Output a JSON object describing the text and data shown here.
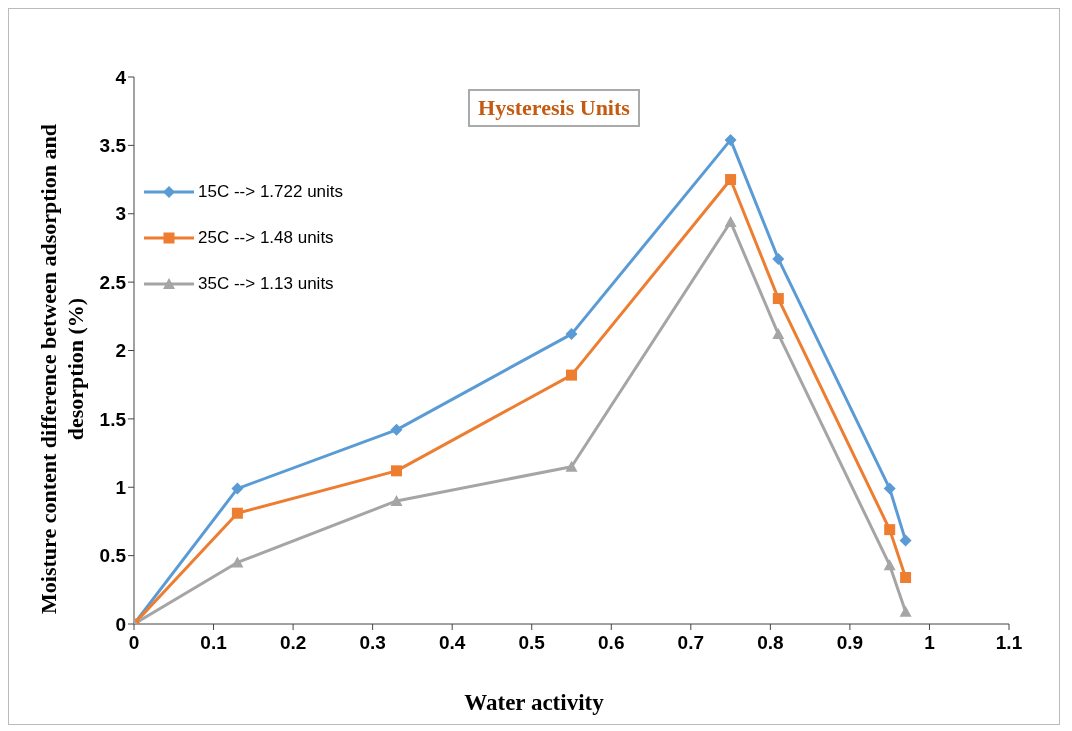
{
  "chart_data": {
    "type": "line",
    "title": "Hysteresis Units",
    "xlabel": "Water activity",
    "ylabel": "Moisture content   difference between adsorption and desorption (%)",
    "x": [
      0,
      0.13,
      0.33,
      0.55,
      0.75,
      0.81,
      0.95,
      0.97
    ],
    "series": [
      {
        "name": "15C --> 1.722  units",
        "color": "#5b9bd5",
        "marker": "diamond",
        "values": [
          0,
          0.99,
          1.42,
          2.12,
          3.54,
          2.67,
          0.99,
          0.61
        ]
      },
      {
        "name": "25C --> 1.48 units",
        "color": "#ed7d31",
        "marker": "square",
        "values": [
          0,
          0.81,
          1.12,
          1.82,
          3.25,
          2.38,
          0.69,
          0.34
        ]
      },
      {
        "name": "35C --> 1.13 units",
        "color": "#a5a5a5",
        "marker": "triangle",
        "values": [
          0,
          0.45,
          0.9,
          1.15,
          2.94,
          2.12,
          0.43,
          0.09
        ]
      }
    ],
    "xlim": [
      0,
      1.1
    ],
    "xticks": [
      0,
      0.1,
      0.2,
      0.3,
      0.4,
      0.5,
      0.6,
      0.7,
      0.8,
      0.9,
      1,
      1.1
    ],
    "ylim": [
      0,
      4
    ],
    "yticks": [
      0,
      0.5,
      1,
      1.5,
      2,
      2.5,
      3,
      3.5,
      4
    ],
    "grid": false,
    "legend": "top left",
    "line_style": "solid"
  }
}
